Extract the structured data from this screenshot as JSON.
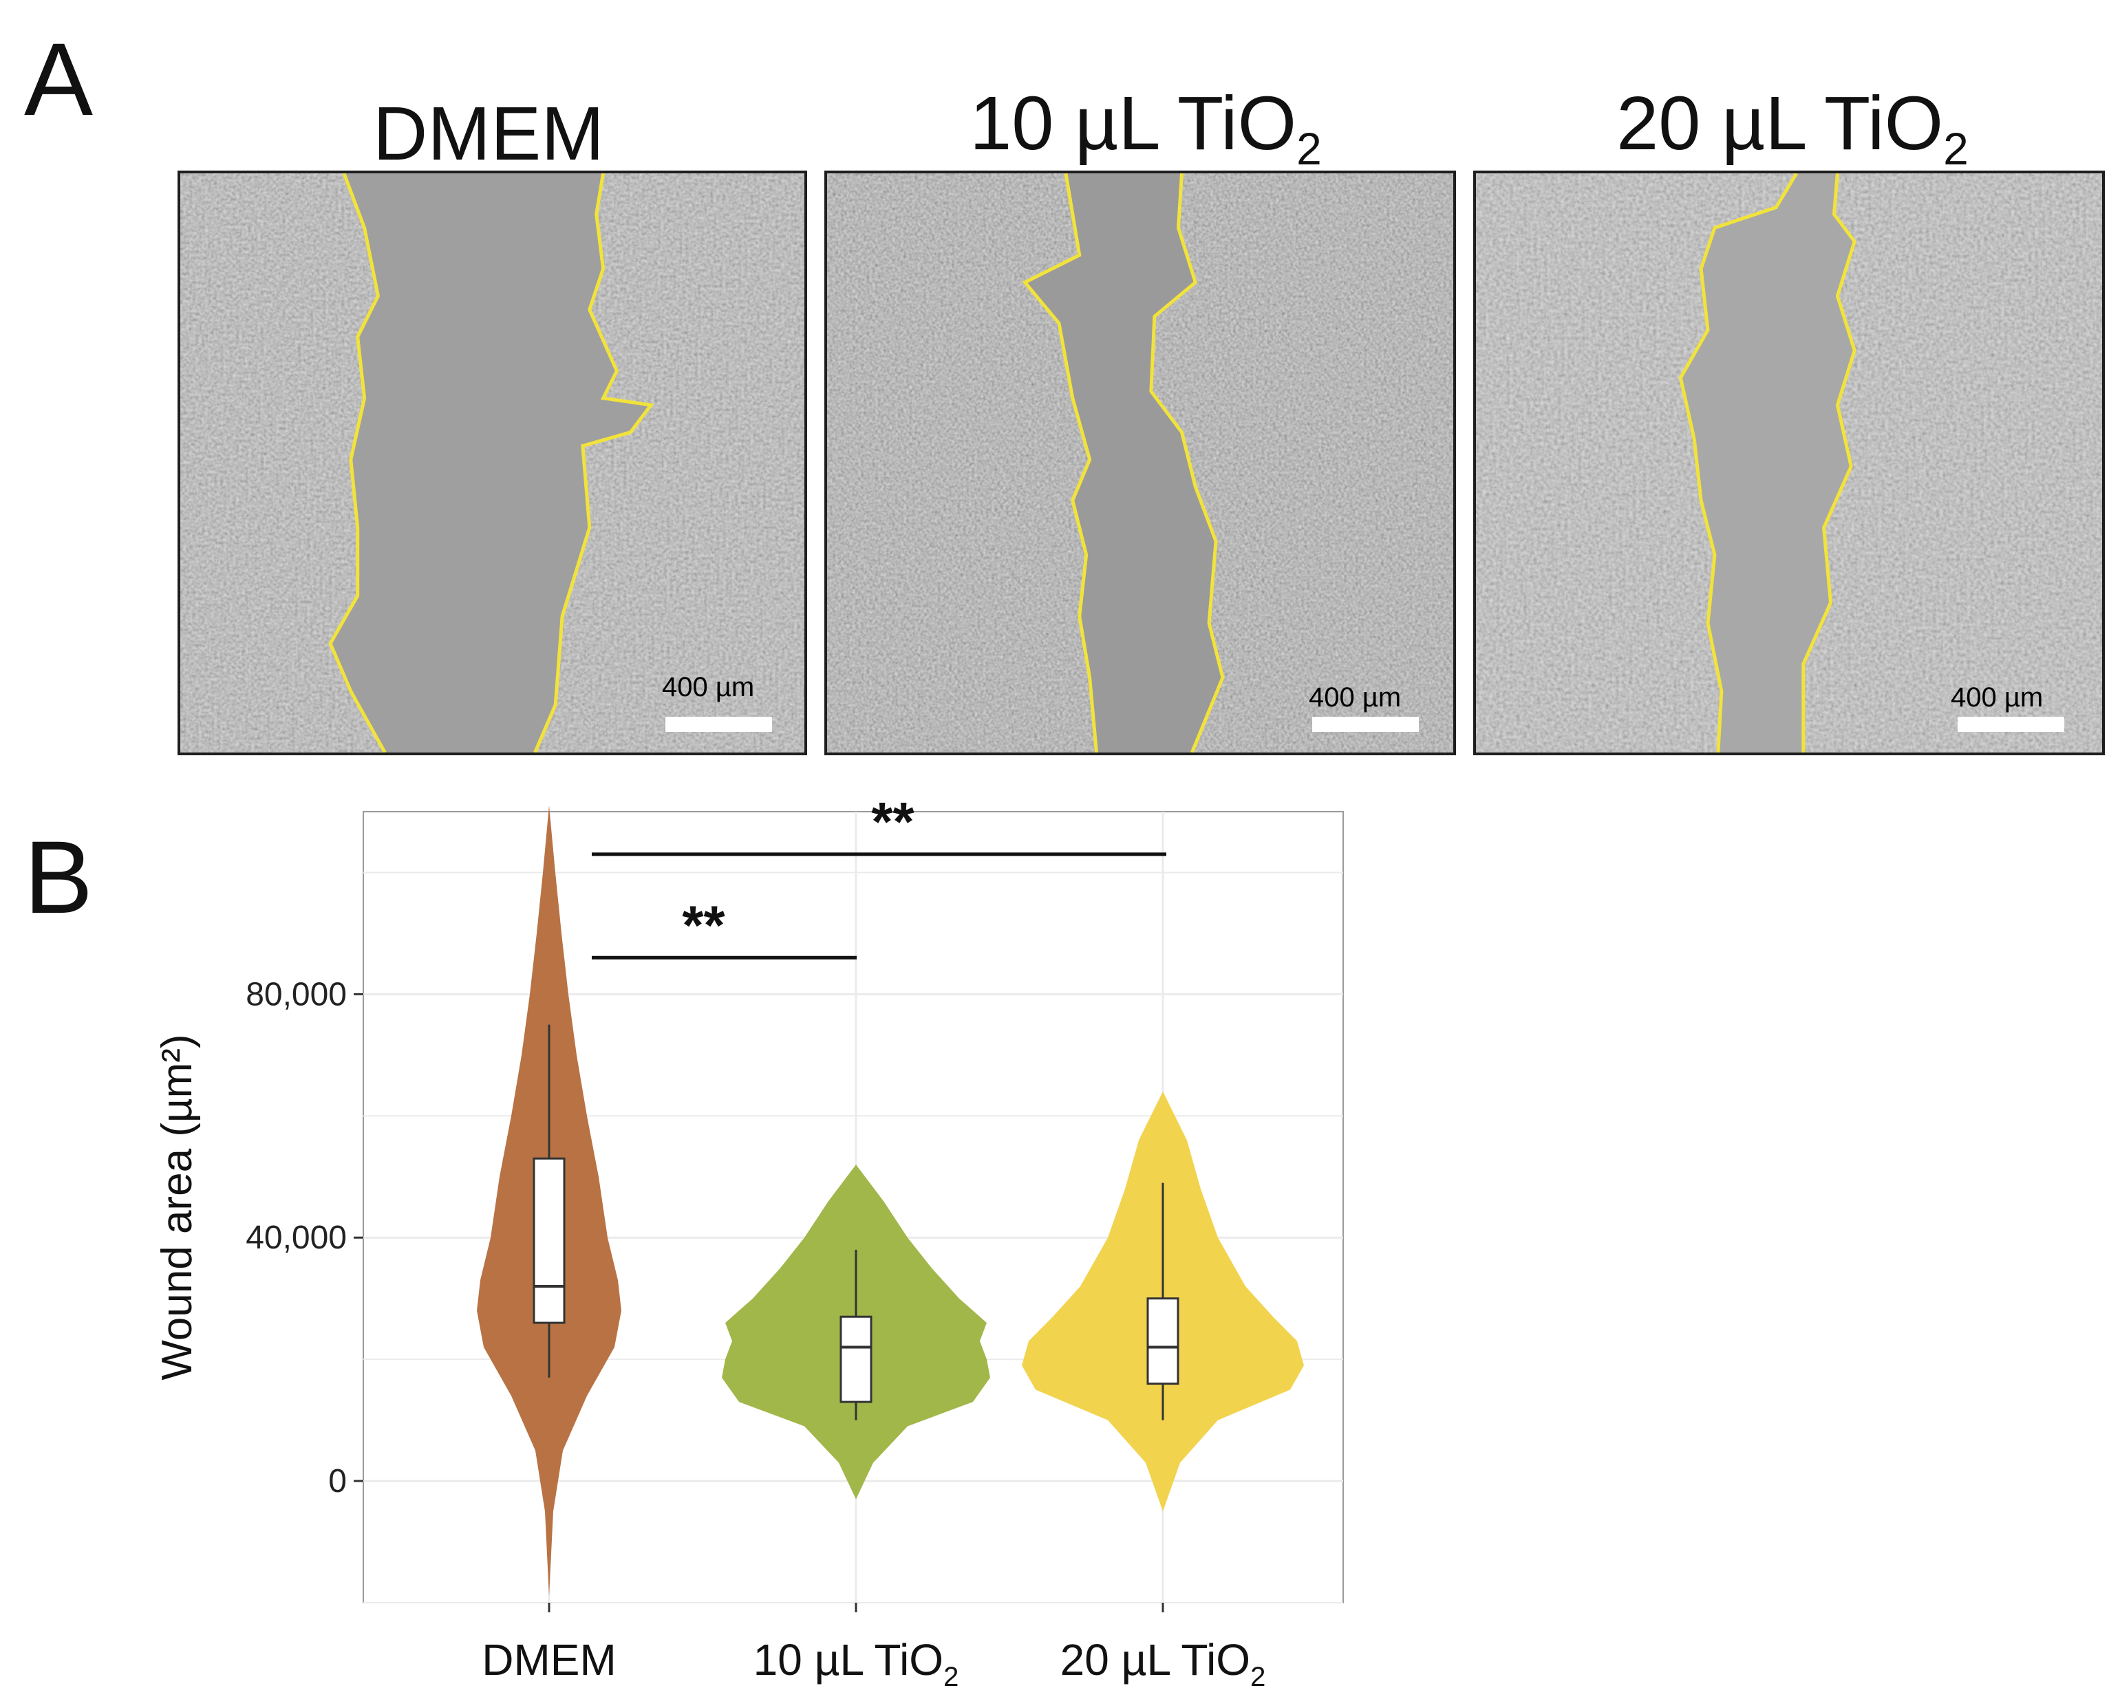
{
  "panel_a": {
    "letter": "A",
    "images": [
      {
        "title_main": "DMEM",
        "title_sub": "",
        "scale_label": "400  µm"
      },
      {
        "title_main": "10 µL TiO",
        "title_sub": "2",
        "scale_label": "400  µm"
      },
      {
        "title_main": "20 µL TiO",
        "title_sub": "2",
        "scale_label": "400  µm"
      }
    ],
    "outline_color": "#f2e33a"
  },
  "panel_b": {
    "letter": "B"
  },
  "chart_data": {
    "type": "violin",
    "ylabel": "Wound area (µm²)",
    "yticks": [
      0,
      40000,
      80000
    ],
    "ytick_labels": [
      "0",
      "40,000",
      "80,000"
    ],
    "ylim": [
      -20000,
      110000
    ],
    "grid": true,
    "categories": [
      {
        "main": "DMEM",
        "sub": ""
      },
      {
        "main": "10 µL TiO",
        "sub": "2"
      },
      {
        "main": "20 µL TiO",
        "sub": "2"
      }
    ],
    "series": [
      {
        "color": "#b87244",
        "violin_min": -19000,
        "violin_max": 111000,
        "box": {
          "whisker_low": 17000,
          "q1": 26000,
          "median": 32000,
          "q3": 53000,
          "whisker_high": 75000
        }
      },
      {
        "color": "#a2b74a",
        "violin_min": -3000,
        "violin_max": 52000,
        "box": {
          "whisker_low": 10000,
          "q1": 13000,
          "median": 22000,
          "q3": 27000,
          "whisker_high": 38000
        }
      },
      {
        "color": "#f2d34e",
        "violin_min": -5000,
        "violin_max": 64000,
        "box": {
          "whisker_low": 10000,
          "q1": 16000,
          "median": 22000,
          "q3": 30000,
          "whisker_high": 49000
        }
      }
    ],
    "significance": [
      {
        "from": 0,
        "to": 2,
        "label": "**",
        "y": 103000
      },
      {
        "from": 0,
        "to": 1,
        "label": "**",
        "y": 86000
      }
    ]
  }
}
